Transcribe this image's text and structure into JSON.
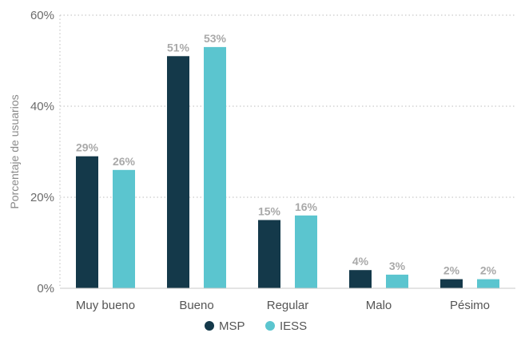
{
  "chart_data": {
    "type": "bar",
    "categories": [
      "Muy bueno",
      "Bueno",
      "Regular",
      "Malo",
      "Pésimo"
    ],
    "series": [
      {
        "name": "MSP",
        "values": [
          29,
          51,
          15,
          4,
          2
        ],
        "color": "#14394a",
        "labels": [
          "29%",
          "51%",
          "15%",
          "4%",
          "2%"
        ]
      },
      {
        "name": "IESS",
        "values": [
          26,
          53,
          16,
          3,
          2
        ],
        "color": "#5bc5cf",
        "labels": [
          "26%",
          "53%",
          "16%",
          "3%",
          "2%"
        ]
      }
    ],
    "title": "",
    "xlabel": "",
    "ylabel": "Porcentaje de usuarios",
    "ylim": [
      0,
      60
    ],
    "yticks": [
      0,
      20,
      40,
      60
    ],
    "ytick_labels": [
      "0%",
      "20%",
      "40%",
      "60%"
    ],
    "grid": "horizontal dotted",
    "legend": "bottom-center"
  }
}
